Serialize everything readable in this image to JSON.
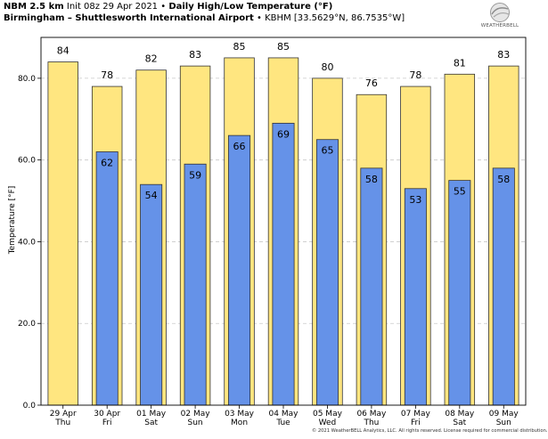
{
  "header": {
    "model": "NBM 2.5 km",
    "init": "Init 08z 29 Apr 2021",
    "separator": "•",
    "product": "Daily High/Low Temperature (°F)",
    "station": "Birmingham – Shuttlesworth International Airport",
    "station_meta": "KBHM [33.5629°N, 86.7535°W]"
  },
  "logo": {
    "text": "WEATHERBELL",
    "icon": "globe-swirl-icon"
  },
  "footer": "© 2021 WeatherBELL Analytics, LLC. All rights reserved. License required for commercial distribution.",
  "chart_data": {
    "type": "bar",
    "categories": [
      [
        "29 Apr",
        "Thu"
      ],
      [
        "30 Apr",
        "Fri"
      ],
      [
        "01 May",
        "Sat"
      ],
      [
        "02 May",
        "Sun"
      ],
      [
        "03 May",
        "Mon"
      ],
      [
        "04 May",
        "Tue"
      ],
      [
        "05 May",
        "Wed"
      ],
      [
        "06 May",
        "Thu"
      ],
      [
        "07 May",
        "Fri"
      ],
      [
        "08 May",
        "Sat"
      ],
      [
        "09 May",
        "Sun"
      ]
    ],
    "series": [
      {
        "values": [
          84,
          78,
          82,
          83,
          85,
          85,
          80,
          76,
          78,
          81,
          83
        ],
        "color": "#ffe680"
      },
      {
        "values": [
          null,
          62,
          54,
          59,
          66,
          69,
          65,
          58,
          53,
          55,
          58
        ],
        "color": "#6592e8"
      }
    ],
    "high_labels": [
      "84",
      "78",
      "82",
      "83",
      "85",
      "85",
      "80",
      "76",
      "78",
      "81",
      "83"
    ],
    "low_labels": [
      "",
      "62",
      "54",
      "59",
      "66",
      "69",
      "65",
      "58",
      "53",
      "55",
      "58"
    ],
    "ylabel": "Temperature [°F]",
    "ylim": [
      0,
      90
    ],
    "yticks": [
      "0.0",
      "20.0",
      "40.0",
      "60.0",
      "80.0"
    ],
    "ytick_values": [
      0,
      20,
      40,
      60,
      80
    ],
    "grid": true
  }
}
